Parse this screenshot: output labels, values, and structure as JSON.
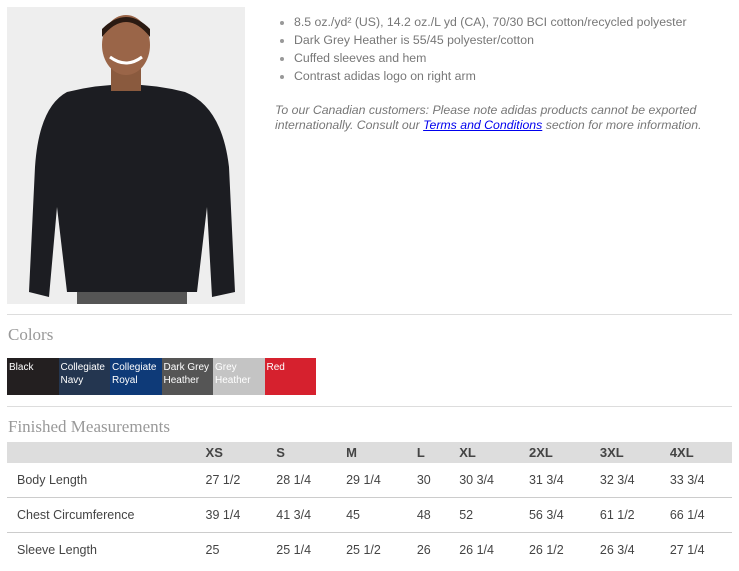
{
  "product": {
    "features": [
      "8.5 oz./yd² (US), 14.2 oz./L yd (CA), 70/30 BCI cotton/recycled polyester",
      "Dark Grey Heather is 55/45 polyester/cotton",
      "Cuffed sleeves and hem",
      "Contrast adidas logo on right arm"
    ],
    "note_before": "To our Canadian customers: Please note adidas products cannot be exported internationally. Consult our ",
    "note_link": "Terms and Conditions",
    "note_after": " section for more information."
  },
  "colors": {
    "heading": "Colors",
    "swatches": [
      {
        "name": "Black",
        "hex": "#231f20"
      },
      {
        "name": "Collegiate Navy",
        "hex": "#243650"
      },
      {
        "name": "Collegiate Royal",
        "hex": "#0e3a78"
      },
      {
        "name": "Dark Grey Heather",
        "hex": "#555555"
      },
      {
        "name": "Grey Heather",
        "hex": "#c4c4c4"
      },
      {
        "name": "Red",
        "hex": "#d6212e"
      }
    ]
  },
  "measurements": {
    "heading": "Finished Measurements",
    "sizes": [
      "XS",
      "S",
      "M",
      "L",
      "XL",
      "2XL",
      "3XL",
      "4XL"
    ],
    "rows": [
      {
        "label": "Body Length",
        "values": [
          "27 1/2",
          "28 1/4",
          "29 1/4",
          "30",
          "30 3/4",
          "31 3/4",
          "32 3/4",
          "33 3/4"
        ]
      },
      {
        "label": "Chest Circumference",
        "values": [
          "39 1/4",
          "41 3/4",
          "45",
          "48",
          "52",
          "56 3/4",
          "61 1/2",
          "66 1/4"
        ]
      },
      {
        "label": "Sleeve Length",
        "values": [
          "25",
          "25 1/4",
          "25 1/2",
          "26",
          "26 1/4",
          "26 1/2",
          "26 3/4",
          "27 1/4"
        ]
      }
    ]
  }
}
